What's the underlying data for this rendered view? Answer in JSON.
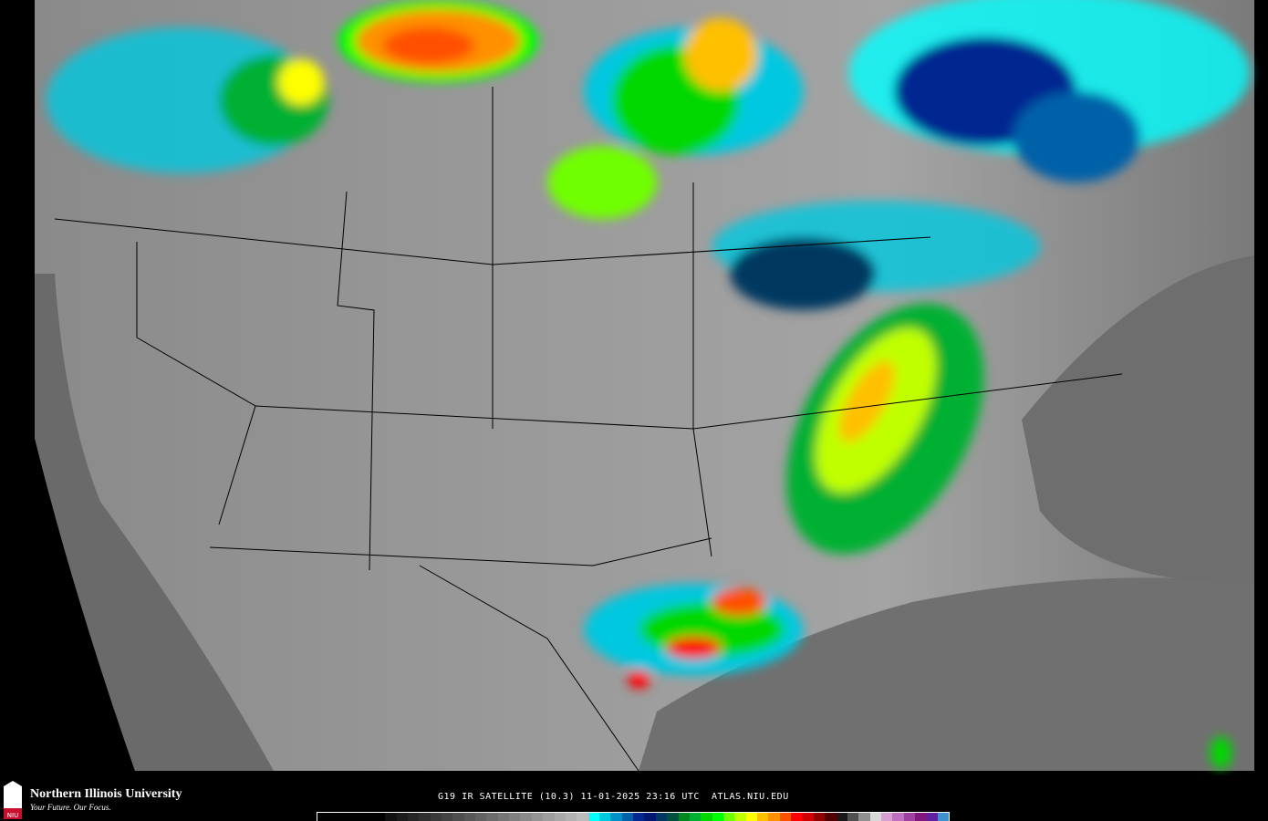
{
  "branding": {
    "name": "Northern Illinois University",
    "tagline": "Your Future. Our Focus.",
    "logo_text": "NIU"
  },
  "caption": "G19 IR SATELLITE (10.3) 11-01-2025 23:16 UTC  ATLAS.NIU.EDU",
  "colorbar": {
    "colors": [
      "#000",
      "#000",
      "#000",
      "#000",
      "#000",
      "#000",
      "#111",
      "#1c1c1c",
      "#262626",
      "#303030",
      "#3a3a3a",
      "#444",
      "#4e4e4e",
      "#585858",
      "#626262",
      "#6c6c6c",
      "#767676",
      "#808080",
      "#8a8a8a",
      "#949494",
      "#9e9e9e",
      "#a8a8a8",
      "#b2b2b2",
      "#bcbcbc",
      "#00ffff",
      "#00c8e0",
      "#0090c8",
      "#0060a8",
      "#002890",
      "#001870",
      "#003860",
      "#005040",
      "#008820",
      "#00b030",
      "#00d800",
      "#00ff00",
      "#70ff00",
      "#c0ff00",
      "#ffff00",
      "#ffc000",
      "#ff9000",
      "#ff5000",
      "#ff0000",
      "#d00000",
      "#900000",
      "#500000",
      "#181818",
      "#505050",
      "#909090",
      "#d8d8d8",
      "#d8a0d0",
      "#c070c0",
      "#a040a0",
      "#801880",
      "#6020a0",
      "#4090d0"
    ]
  }
}
